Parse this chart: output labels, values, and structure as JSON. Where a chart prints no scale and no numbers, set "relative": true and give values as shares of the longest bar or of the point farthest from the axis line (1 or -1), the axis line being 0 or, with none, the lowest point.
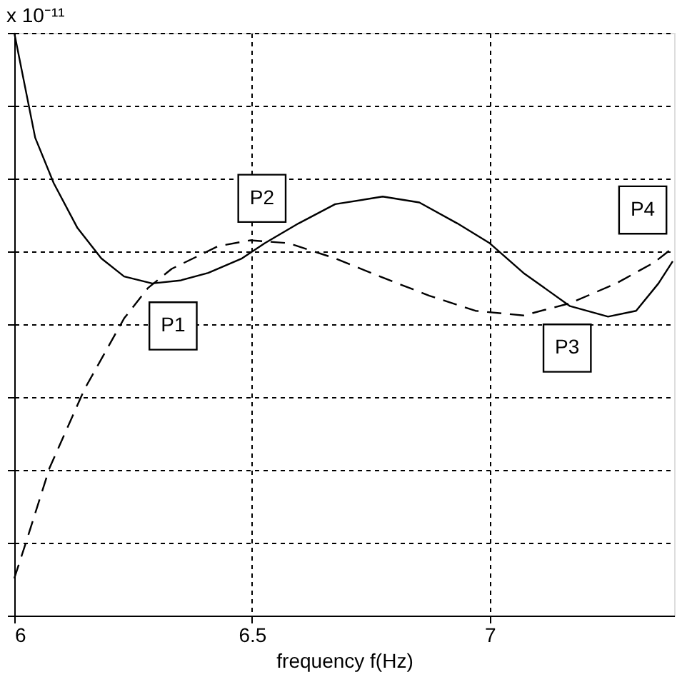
{
  "chart_data": {
    "type": "line",
    "relative": true,
    "xlabel": "frequency f(Hz)",
    "xlim": [
      6,
      7.388
    ],
    "xticks": [
      6,
      6.5,
      7
    ],
    "grid": true,
    "marker": "none",
    "annotations": [
      "x 10⁻¹¹",
      {
        "text": "P1",
        "x": 6.334,
        "y": 0.497
      },
      {
        "text": "P2",
        "x": 6.521,
        "y": 0.716
      },
      {
        "text": "P3",
        "x": 7.163,
        "y": 0.459
      },
      {
        "text": "P4",
        "x": 7.322,
        "y": 0.696
      }
    ],
    "series": [
      {
        "color": "#000000",
        "line_style": "solid",
        "x": [
          6.0,
          6.044,
          6.083,
          6.133,
          6.183,
          6.231,
          6.29,
          6.349,
          6.408,
          6.479,
          6.527,
          6.598,
          6.675,
          6.775,
          6.852,
          6.932,
          7.0,
          7.071,
          7.169,
          7.249,
          7.308,
          7.355,
          7.385
        ],
        "values": [
          1.0,
          0.82,
          0.742,
          0.665,
          0.613,
          0.582,
          0.57,
          0.575,
          0.588,
          0.613,
          0.639,
          0.673,
          0.706,
          0.719,
          0.709,
          0.673,
          0.639,
          0.588,
          0.531,
          0.513,
          0.523,
          0.57,
          0.608
        ]
      },
      {
        "color": "#000000",
        "line_style": "dashed",
        "x": [
          6.0,
          6.024,
          6.074,
          6.148,
          6.231,
          6.281,
          6.331,
          6.429,
          6.497,
          6.577,
          6.675,
          6.775,
          6.873,
          6.97,
          7.071,
          7.169,
          7.266,
          7.346,
          7.385
        ],
        "values": [
          0.064,
          0.124,
          0.253,
          0.389,
          0.51,
          0.562,
          0.595,
          0.634,
          0.644,
          0.639,
          0.613,
          0.58,
          0.549,
          0.523,
          0.515,
          0.536,
          0.57,
          0.606,
          0.631
        ]
      }
    ]
  }
}
